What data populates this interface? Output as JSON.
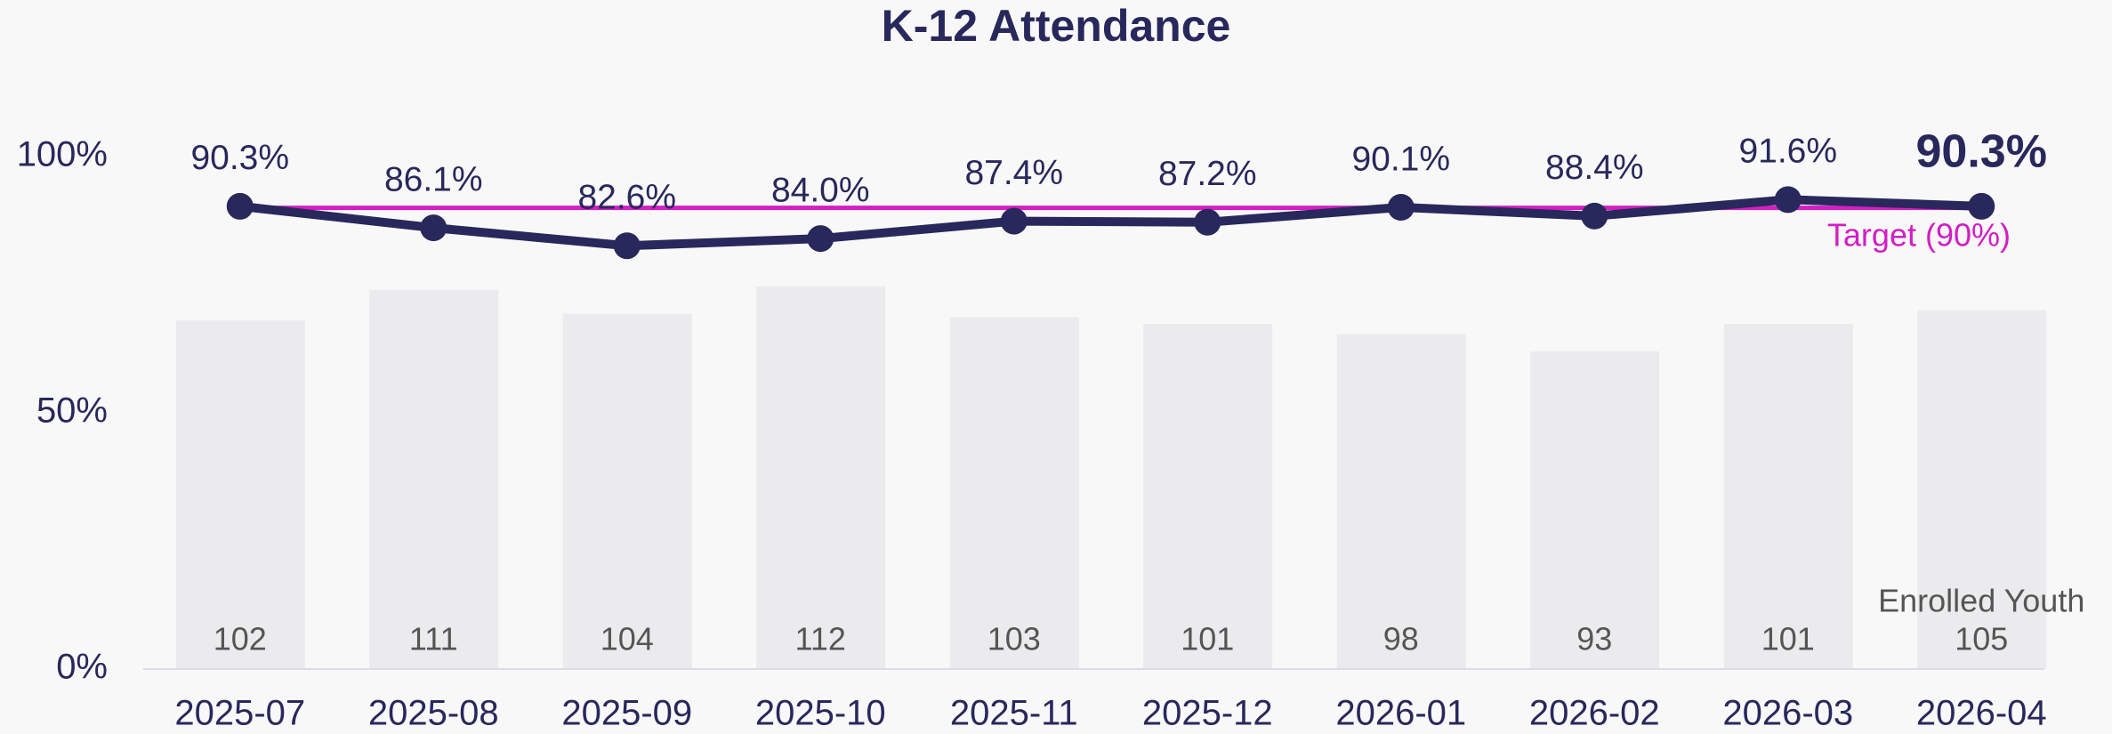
{
  "chart_data": {
    "type": "line",
    "title": "K-12 Attendance",
    "categories": [
      "2025-07",
      "2025-08",
      "2025-09",
      "2025-10",
      "2025-11",
      "2025-12",
      "2026-01",
      "2026-02",
      "2026-03",
      "2026-04"
    ],
    "series": [
      {
        "name": "Enrolled Youth",
        "type": "bar",
        "axis": "y2",
        "color": "#ebebed",
        "values": [
          102,
          111,
          104,
          112,
          103,
          101,
          98,
          93,
          101,
          105
        ]
      },
      {
        "type": "line",
        "color": "#28285c",
        "values": [
          90.3,
          86.1,
          82.6,
          84.0,
          87.4,
          87.2,
          90.1,
          88.4,
          91.6,
          90.3
        ],
        "value_labels": [
          "90.3%",
          "86.1%",
          "82.6%",
          "84.0%",
          "87.4%",
          "87.2%",
          "90.1%",
          "88.4%",
          "91.6%",
          "90.3%"
        ]
      }
    ],
    "target": {
      "value": 90,
      "label": "Target (90%)",
      "color": "#d21ec4"
    },
    "ylim": [
      0,
      100
    ],
    "yticks": [
      {
        "value": 0,
        "label": "0%"
      },
      {
        "value": 50,
        "label": "50%"
      },
      {
        "value": 100,
        "label": "100%"
      }
    ],
    "y2lim": [
      0,
      150
    ]
  }
}
